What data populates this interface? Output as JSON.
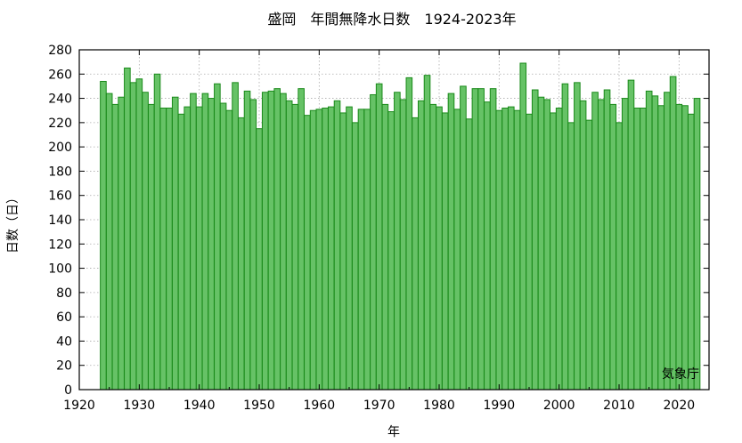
{
  "chart_data": {
    "type": "bar",
    "title": "盛岡　年間無降水日数　1924-2023年",
    "xlabel": "年",
    "ylabel": "日数（日）",
    "credit": "気象庁",
    "xlim": [
      1920,
      2025
    ],
    "ylim": [
      0,
      280
    ],
    "x_ticks": [
      1920,
      1930,
      1940,
      1950,
      1960,
      1970,
      1980,
      1990,
      2000,
      2010,
      2020
    ],
    "y_ticks": [
      0,
      20,
      40,
      60,
      80,
      100,
      120,
      140,
      160,
      180,
      200,
      220,
      240,
      260,
      280
    ],
    "grid": true,
    "x": [
      1924,
      1925,
      1926,
      1927,
      1928,
      1929,
      1930,
      1931,
      1932,
      1933,
      1934,
      1935,
      1936,
      1937,
      1938,
      1939,
      1940,
      1941,
      1942,
      1943,
      1944,
      1945,
      1946,
      1947,
      1948,
      1949,
      1950,
      1951,
      1952,
      1953,
      1954,
      1955,
      1956,
      1957,
      1958,
      1959,
      1960,
      1961,
      1962,
      1963,
      1964,
      1965,
      1966,
      1967,
      1968,
      1969,
      1970,
      1971,
      1972,
      1973,
      1974,
      1975,
      1976,
      1977,
      1978,
      1979,
      1980,
      1981,
      1982,
      1983,
      1984,
      1985,
      1986,
      1987,
      1988,
      1989,
      1990,
      1991,
      1992,
      1993,
      1994,
      1995,
      1996,
      1997,
      1998,
      1999,
      2000,
      2001,
      2002,
      2003,
      2004,
      2005,
      2006,
      2007,
      2008,
      2009,
      2010,
      2011,
      2012,
      2013,
      2014,
      2015,
      2016,
      2017,
      2018,
      2019,
      2020,
      2021,
      2022,
      2023
    ],
    "values": [
      254,
      244,
      235,
      241,
      265,
      253,
      256,
      245,
      235,
      260,
      232,
      232,
      241,
      227,
      233,
      244,
      233,
      244,
      240,
      252,
      236,
      230,
      253,
      224,
      246,
      239,
      215,
      245,
      246,
      248,
      244,
      238,
      235,
      248,
      226,
      230,
      231,
      232,
      233,
      238,
      228,
      233,
      220,
      231,
      231,
      243,
      252,
      235,
      229,
      245,
      239,
      257,
      224,
      238,
      259,
      235,
      233,
      228,
      244,
      231,
      250,
      223,
      248,
      248,
      237,
      248,
      230,
      232,
      233,
      230,
      269,
      227,
      247,
      241,
      239,
      228,
      232,
      252,
      220,
      253,
      238,
      222,
      245,
      239,
      247,
      235,
      220,
      240,
      255,
      232,
      232,
      246,
      242,
      234,
      245,
      258,
      235,
      234,
      227,
      240
    ],
    "colors": {
      "bar_fill": "#66c266",
      "bar_edge": "#1a8a1a",
      "grid": "#aaaaaa",
      "axis": "#000000"
    }
  }
}
